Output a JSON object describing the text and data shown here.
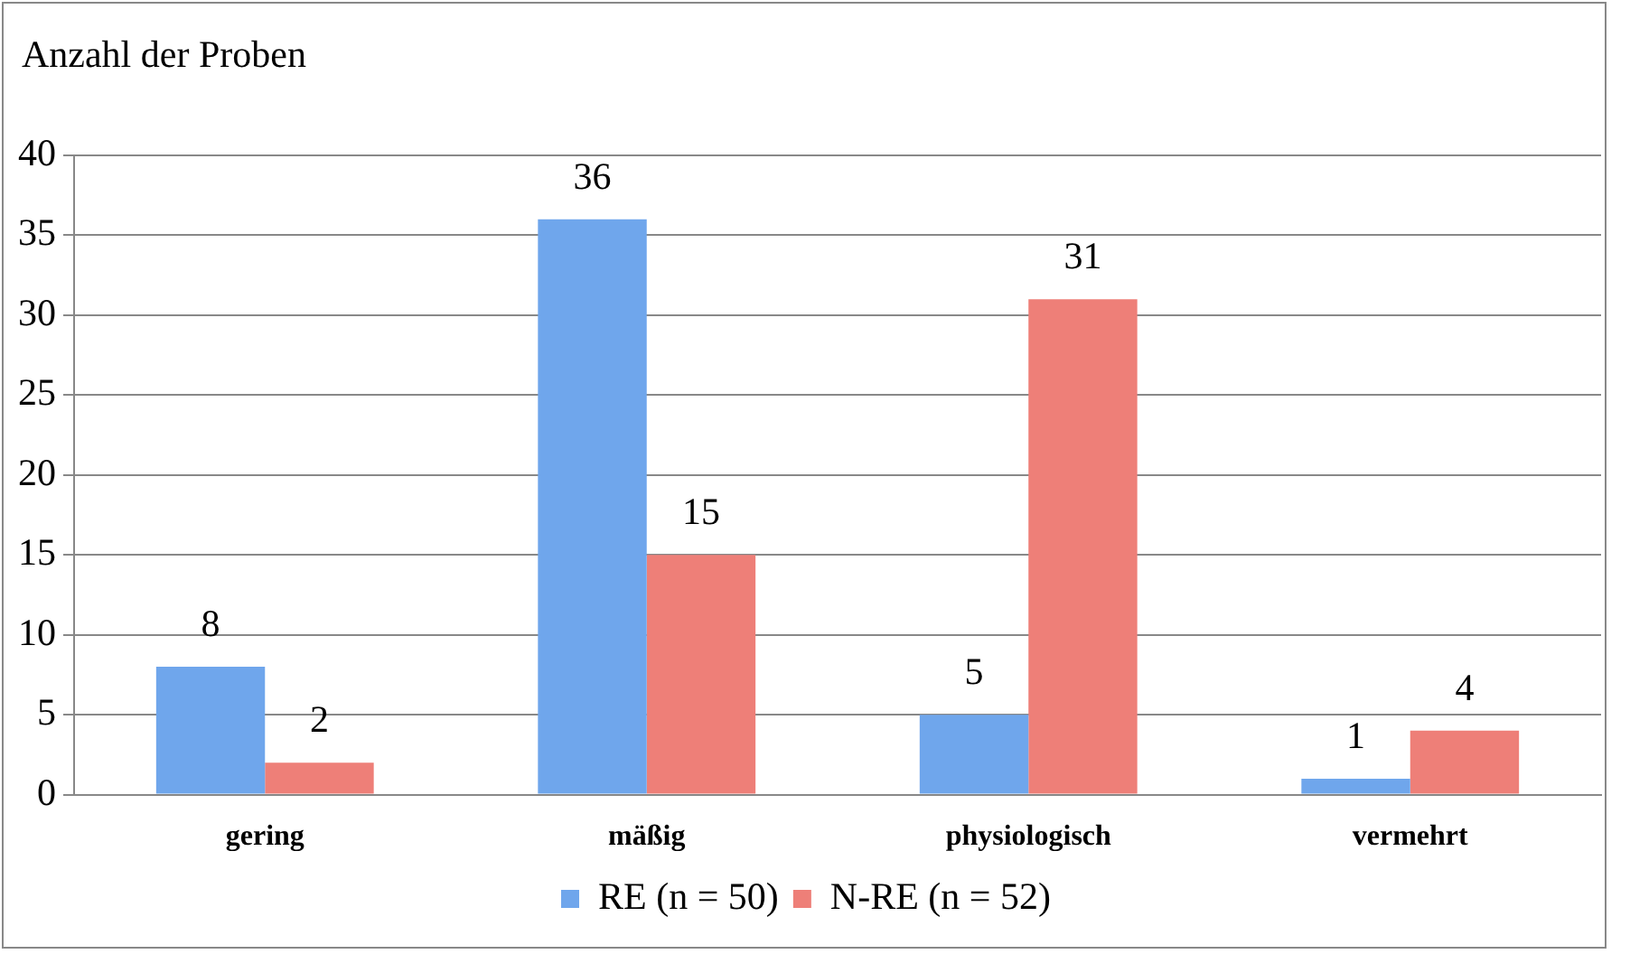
{
  "chart_data": {
    "type": "bar",
    "ylabel": "Anzahl der Proben",
    "categories": [
      "gering",
      "mäßig",
      "physiologisch",
      "vermehrt"
    ],
    "series": [
      {
        "name": "RE (n = 50)",
        "color": "#6fa6ec",
        "values": [
          8,
          36,
          5,
          1
        ]
      },
      {
        "name": "N-RE (n = 52)",
        "color": "#ee7f78",
        "values": [
          2,
          15,
          31,
          4
        ]
      }
    ],
    "ylim": [
      0,
      40
    ],
    "yticks": [
      0,
      5,
      10,
      15,
      20,
      25,
      30,
      35,
      40
    ],
    "grid": "y",
    "legend": "bottom",
    "data_labels": true
  }
}
